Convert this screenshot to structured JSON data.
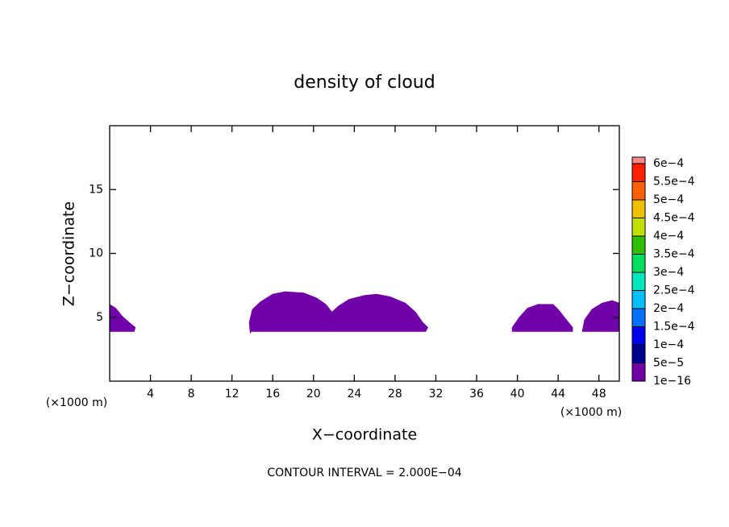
{
  "chart_data": {
    "type": "contour",
    "title": "density of cloud",
    "x_label": "X−coordinate",
    "y_label": "Z−coordinate",
    "x_unit_left": "(×1000 m)",
    "x_unit_right": "(×1000 m)",
    "footnote": "CONTOUR INTERVAL = 2.000E−04",
    "xlim": [
      0,
      50
    ],
    "ylim": [
      0,
      20
    ],
    "xticks": [
      4,
      8,
      12,
      16,
      20,
      24,
      28,
      32,
      36,
      40,
      44,
      48
    ],
    "yticks": [
      5,
      10,
      15
    ],
    "colorbar": {
      "levels": [
        {
          "value": 1e-16,
          "label": "1e−16"
        },
        {
          "value": 5e-05,
          "label": "5e−5"
        },
        {
          "value": 0.0001,
          "label": "1e−4"
        },
        {
          "value": 0.00015,
          "label": "1.5e−4"
        },
        {
          "value": 0.0002,
          "label": "2e−4"
        },
        {
          "value": 0.00025,
          "label": "2.5e−4"
        },
        {
          "value": 0.0003,
          "label": "3e−4"
        },
        {
          "value": 0.00035,
          "label": "3.5e−4"
        },
        {
          "value": 0.0004,
          "label": "4e−4"
        },
        {
          "value": 0.00045,
          "label": "4.5e−4"
        },
        {
          "value": 0.0005,
          "label": "5e−4"
        },
        {
          "value": 0.00055,
          "label": "5.5e−4"
        },
        {
          "value": 0.0006,
          "label": "6e−4"
        }
      ],
      "colors": [
        "#7000a8",
        "#000090",
        "#0000f0",
        "#0070ff",
        "#00c0ff",
        "#00e8c0",
        "#00e060",
        "#30c000",
        "#c0e000",
        "#f0c000",
        "#ff6000",
        "#ff2000",
        "#ff8888"
      ]
    },
    "regions": [
      {
        "color": "#7000a8",
        "x": [
          0,
          0.6,
          1.2,
          1.9,
          2.5,
          2.4,
          0
        ],
        "z": [
          6.0,
          5.7,
          5.1,
          4.6,
          4.2,
          3.9,
          3.9
        ]
      },
      {
        "color": "#7000a8",
        "x": [
          13.8,
          13.7,
          14.0,
          14.8,
          16.0,
          17.2,
          19.0,
          20.3,
          21.2,
          21.8,
          22.5,
          23.5,
          25.0,
          26.2,
          27.5,
          29.0,
          30.0,
          30.7,
          31.2,
          31.0,
          13.9
        ],
        "z": [
          3.8,
          4.6,
          5.6,
          6.2,
          6.8,
          7.0,
          6.9,
          6.5,
          6.0,
          5.4,
          5.9,
          6.4,
          6.7,
          6.8,
          6.6,
          6.1,
          5.4,
          4.6,
          4.2,
          3.9,
          3.9
        ]
      },
      {
        "color": "#7000a8",
        "x": [
          39.5,
          40.2,
          41.0,
          42.0,
          43.5,
          44.0,
          44.8,
          45.4,
          45.4,
          39.5
        ],
        "z": [
          4.2,
          5.0,
          5.7,
          6.0,
          6.0,
          5.6,
          4.8,
          4.2,
          3.9,
          3.9
        ]
      },
      {
        "color": "#7000a8",
        "x": [
          46.4,
          46.6,
          47.3,
          48.3,
          49.3,
          50,
          50,
          46.4
        ],
        "z": [
          4.0,
          4.8,
          5.6,
          6.1,
          6.3,
          6.1,
          3.9,
          3.9
        ]
      }
    ]
  }
}
